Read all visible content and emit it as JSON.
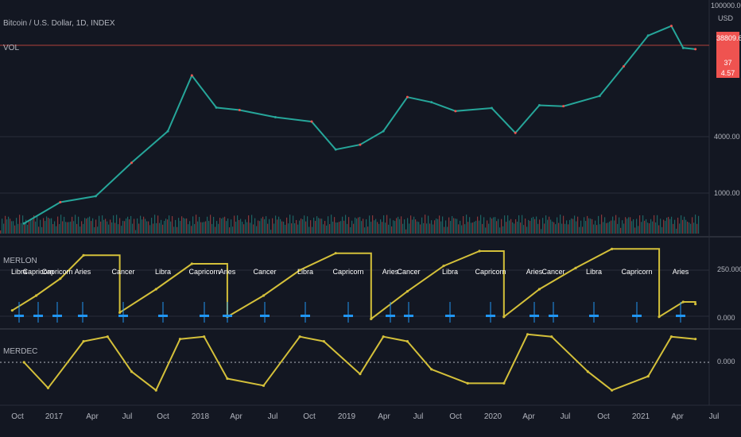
{
  "header": {
    "symbol": "Bitcoin / U.S. Dollar, 1D, INDEX",
    "indicator_1": "VOL",
    "indicator_2": "MERLON",
    "indicator_3": "MERDEC"
  },
  "price_scale": {
    "top": "100000.00",
    "unit": "USD",
    "last_price_1": "38809.67",
    "last_price_2": "37 4.57",
    "level_4000": "4000.00",
    "level_1000": "1000.00"
  },
  "merlon_scale": {
    "top": "250.000",
    "bottom": "0.000"
  },
  "merdec_scale": {
    "zero": "0.000"
  },
  "x_axis_labels": [
    "Oct",
    "2017",
    "Apr",
    "Jul",
    "Oct",
    "2018",
    "Apr",
    "Jul",
    "Oct",
    "2019",
    "Apr",
    "Jul",
    "Oct",
    "2020",
    "Apr",
    "Jul",
    "Oct",
    "2021",
    "Apr",
    "Jul"
  ],
  "zodiac_labels": [
    "Libra",
    "Capricorn",
    "Capricorn",
    "Aries",
    "Cancer",
    "Libra",
    "Capricorn",
    "Aries",
    "Cancer",
    "Libra",
    "Capricorn",
    "Aries",
    "Cancer",
    "Libra",
    "Capricorn",
    "Aries",
    "Cancer",
    "Libra",
    "Capricorn",
    "Aries"
  ],
  "colors": {
    "background": "#131722",
    "grid": "#2a2e39",
    "up": "#26a69a",
    "down": "#ef5350",
    "merlon_line": "#d4c03a",
    "event_marker": "#2196f3",
    "hline": "#b2403a"
  },
  "chart_data": [
    {
      "type": "line",
      "name": "price",
      "scale": "log",
      "x": [
        "2016-10",
        "2017-01",
        "2017-04",
        "2017-07",
        "2017-10",
        "2017-12",
        "2018-02",
        "2018-04",
        "2018-07",
        "2018-10",
        "2018-12",
        "2019-02",
        "2019-04",
        "2019-06",
        "2019-08",
        "2019-10",
        "2020-01",
        "2020-03",
        "2020-05",
        "2020-07",
        "2020-10",
        "2020-12",
        "2021-02",
        "2021-04",
        "2021-05",
        "2021-06"
      ],
      "y": [
        610,
        1000,
        1150,
        2500,
        5200,
        19000,
        9000,
        8500,
        7200,
        6500,
        3400,
        3800,
        5200,
        11500,
        10200,
        8300,
        8900,
        5000,
        9500,
        9300,
        11800,
        23500,
        48000,
        60000,
        36000,
        35000
      ]
    },
    {
      "type": "line",
      "name": "MERLON",
      "ylim": [
        0,
        360
      ],
      "x": [
        "2016-09",
        "2016-11",
        "2017-01",
        "2017-03",
        "2017-06",
        "2017-09",
        "2017-12",
        "2018-03",
        "2018-06",
        "2018-09",
        "2018-12",
        "2019-03",
        "2019-06",
        "2019-09",
        "2019-12",
        "2020-02",
        "2020-05",
        "2020-08",
        "2020-11",
        "2021-03",
        "2021-05",
        "2021-06"
      ],
      "y": [
        50,
        120,
        200,
        310,
        40,
        150,
        270,
        20,
        120,
        240,
        320,
        10,
        140,
        260,
        330,
        20,
        150,
        250,
        340,
        20,
        90,
        80
      ]
    },
    {
      "type": "line",
      "name": "MERDEC",
      "ylim": [
        -30,
        30
      ],
      "x": [
        "2016-10",
        "2016-12",
        "2017-03",
        "2017-05",
        "2017-07",
        "2017-09",
        "2017-11",
        "2018-01",
        "2018-03",
        "2018-06",
        "2018-09",
        "2018-11",
        "2019-02",
        "2019-04",
        "2019-06",
        "2019-08",
        "2019-11",
        "2020-02",
        "2020-04",
        "2020-06",
        "2020-09",
        "2020-11",
        "2021-02",
        "2021-04",
        "2021-06"
      ],
      "y": [
        0,
        -22,
        18,
        22,
        -8,
        -24,
        20,
        22,
        -14,
        -20,
        22,
        18,
        -10,
        22,
        18,
        -6,
        -18,
        -18,
        24,
        22,
        -8,
        -24,
        -12,
        22,
        20
      ]
    }
  ]
}
